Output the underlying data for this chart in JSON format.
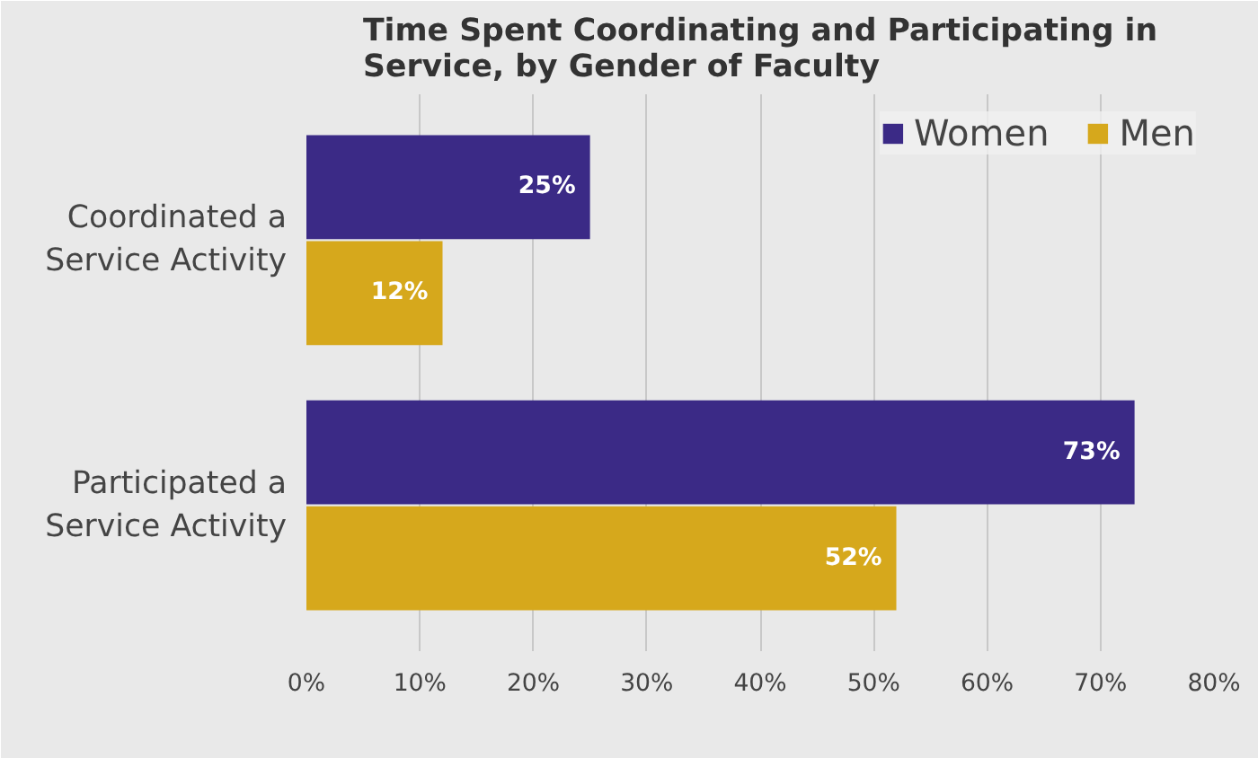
{
  "chart_data": {
    "type": "bar",
    "orientation": "horizontal",
    "title": "Time Spent Coordinating and Participating in Service, by Gender of Faculty",
    "categories": [
      "Coordinated a Service Activity",
      "Participated a Service Activity"
    ],
    "series": [
      {
        "name": "Women",
        "color": "#3b2a86",
        "values": [
          25,
          73
        ],
        "value_labels": [
          "25%",
          "73%"
        ]
      },
      {
        "name": "Men",
        "color": "#d6a81c",
        "values": [
          12,
          52
        ],
        "value_labels": [
          "12%",
          "52%"
        ]
      }
    ],
    "xlim": [
      0,
      80
    ],
    "xticks": [
      {
        "value": 0,
        "label": "0%"
      },
      {
        "value": 10,
        "label": "10%"
      },
      {
        "value": 20,
        "label": "20%"
      },
      {
        "value": 30,
        "label": "30%"
      },
      {
        "value": 40,
        "label": "40%"
      },
      {
        "value": 50,
        "label": "50%"
      },
      {
        "value": 60,
        "label": "60%"
      },
      {
        "value": 70,
        "label": "70%"
      },
      {
        "value": 80,
        "label": "80%"
      }
    ],
    "grid": "x",
    "legend": "top right"
  }
}
